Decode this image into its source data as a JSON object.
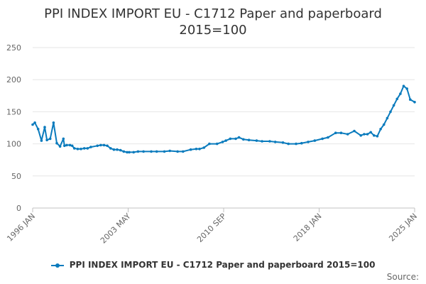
{
  "chart_data": {
    "type": "line",
    "title": "PPI INDEX IMPORT EU - C1712 Paper and paperboard",
    "subtitle": "2015=100",
    "x_tick_labels": [
      "1996 JAN",
      "2003 MAY",
      "2010 SEP",
      "2018 JAN",
      "2025 JAN"
    ],
    "y_ticks": [
      0,
      50,
      100,
      150,
      200,
      250
    ],
    "ylim": [
      0,
      250
    ],
    "xlim": [
      "1996-01",
      "2025-01"
    ],
    "grid": "horizontal",
    "legend_position": "bottom-center",
    "series": [
      {
        "name": "PPI INDEX IMPORT EU - C1712 Paper and paperboard 2015=100",
        "color": "#0a7bbd",
        "x": [
          "1996-01",
          "1996-03",
          "1996-06",
          "1996-09",
          "1996-12",
          "1997-02",
          "1997-05",
          "1997-08",
          "1997-11",
          "1998-02",
          "1998-05",
          "1998-06",
          "1998-08",
          "1998-11",
          "1999-01",
          "1999-03",
          "1999-06",
          "1999-09",
          "1999-12",
          "2000-03",
          "2000-06",
          "2000-12",
          "2001-03",
          "2001-06",
          "2001-09",
          "2001-12",
          "2002-03",
          "2002-06",
          "2002-09",
          "2002-12",
          "2003-03",
          "2003-05",
          "2003-09",
          "2004-01",
          "2004-06",
          "2005-01",
          "2005-06",
          "2006-01",
          "2006-06",
          "2007-01",
          "2007-06",
          "2008-01",
          "2008-06",
          "2008-09",
          "2009-01",
          "2009-06",
          "2010-01",
          "2010-06",
          "2010-09",
          "2011-01",
          "2011-06",
          "2011-09",
          "2012-01",
          "2012-06",
          "2013-01",
          "2013-06",
          "2014-01",
          "2014-06",
          "2015-01",
          "2015-06",
          "2016-01",
          "2016-06",
          "2016-12",
          "2017-06",
          "2018-01",
          "2018-06",
          "2019-01",
          "2019-06",
          "2019-12",
          "2020-06",
          "2020-12",
          "2021-03",
          "2021-06",
          "2021-09",
          "2021-12",
          "2022-03",
          "2022-06",
          "2022-09",
          "2022-12",
          "2023-03",
          "2023-06",
          "2023-09",
          "2023-12",
          "2024-03",
          "2024-06",
          "2024-09",
          "2025-01"
        ],
        "values": [
          130,
          133,
          123,
          105,
          126,
          106,
          108,
          133,
          101,
          96,
          108,
          97,
          98,
          98,
          97,
          93,
          92,
          92,
          93,
          93,
          95,
          97,
          98,
          98,
          97,
          93,
          91,
          91,
          90,
          88,
          87,
          87,
          87,
          88,
          88,
          88,
          88,
          88,
          89,
          88,
          88,
          91,
          92,
          92,
          94,
          100,
          100,
          103,
          105,
          108,
          108,
          110,
          107,
          106,
          105,
          104,
          104,
          103,
          102,
          100,
          100,
          101,
          103,
          105,
          108,
          110,
          117,
          117,
          115,
          120,
          113,
          115,
          115,
          118,
          113,
          112,
          123,
          130,
          140,
          150,
          160,
          170,
          178,
          190,
          186,
          169,
          165
        ]
      }
    ],
    "source_label": "Source:"
  }
}
